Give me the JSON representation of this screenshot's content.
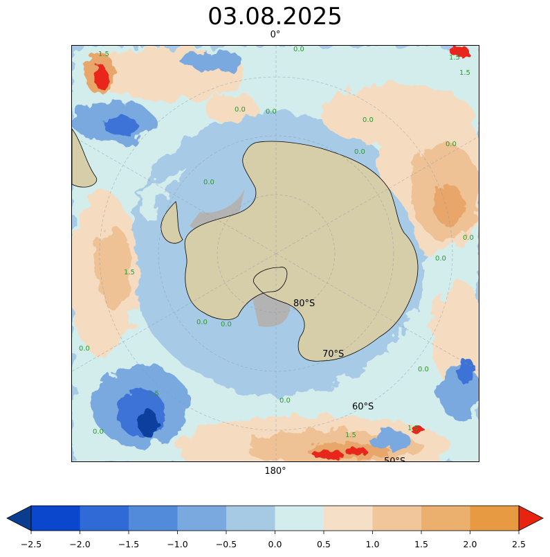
{
  "title": "03.08.2025",
  "map": {
    "top_longitude_label": "0°",
    "bottom_longitude_label": "180°",
    "latitude_labels": [
      "80°S",
      "70°S",
      "60°S",
      "50°S"
    ],
    "contour_labels": [
      "0.0",
      "1.5"
    ],
    "colors": {
      "ocean_base": "#a7cbe6",
      "near_zero": "#d3ecec",
      "land": "#d6cda9",
      "ice_shelf": "#b3b3b3",
      "warm_1": "#f5dcc1",
      "warm_2": "#efc296",
      "warm_3": "#e8a66b",
      "extreme_warm": "#e8261a",
      "cool_1": "#7aa9e0",
      "cool_2": "#3c73d6",
      "extreme_cool": "#0b3f9e",
      "contour_label": "#2a9a2a"
    }
  },
  "colorbar": {
    "ticks": [
      "−2.5",
      "−2.0",
      "−1.5",
      "−1.0",
      "−0.5",
      "0.0",
      "0.5",
      "1.0",
      "1.5",
      "2.0",
      "2.5"
    ],
    "colors": [
      "#0a47cc",
      "#2f6ad6",
      "#538bdb",
      "#7aa9e0",
      "#a6c9e4",
      "#d3ecec",
      "#f5dfc7",
      "#f0c69a",
      "#ebb06d",
      "#e79a42"
    ],
    "under_color": "#0b3d8f",
    "over_color": "#e8240e"
  }
}
